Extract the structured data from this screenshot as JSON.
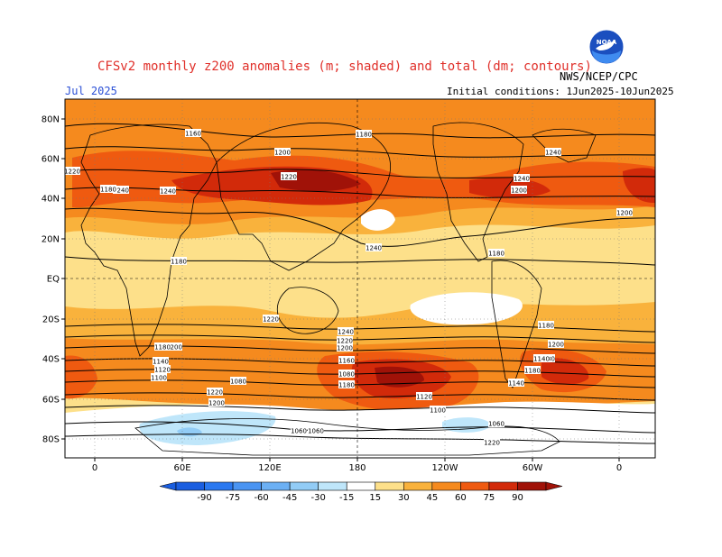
{
  "header": {
    "title": "CFSv2 monthly z200 anomalies (m; shaded) and total (dm; contours)",
    "month": "Jul 2025",
    "agency": "NWS/NCEP/CPC",
    "initial_conditions": "Initial conditions: 1Jun2025-10Jun2025",
    "logo_text": "NOAA"
  },
  "map": {
    "lat_labels": [
      "80N",
      "60N",
      "40N",
      "20N",
      "EQ",
      "20S",
      "40S",
      "60S",
      "80S"
    ],
    "lon_labels": [
      "0",
      "60E",
      "120E",
      "180",
      "120W",
      "60W",
      "0"
    ],
    "contour_labels": [
      "1160",
      "1180",
      "1200",
      "1220",
      "1240",
      "1240",
      "1240",
      "1240",
      "1200",
      "1220",
      "1240",
      "1180",
      "1180",
      "1200",
      "1220",
      "1240",
      "1220",
      "1200",
      "1180",
      "1200",
      "1180",
      "1160",
      "1140",
      "1120",
      "1100",
      "1080",
      "1220",
      "1200",
      "1180",
      "1180",
      "1140",
      "1120",
      "1100",
      "1080",
      "1060",
      "1220",
      "1200",
      "1180",
      "1180",
      "1140",
      "1080",
      "1060",
      "1060"
    ]
  },
  "colorbar": {
    "labels": [
      "-90",
      "-75",
      "-60",
      "-45",
      "-30",
      "-15",
      "15",
      "30",
      "45",
      "60",
      "75",
      "90"
    ],
    "colors": [
      "#1a5ee0",
      "#2a78f0",
      "#4a94f2",
      "#6cb0f4",
      "#92ccf6",
      "#bfe6fa",
      "#ffffff",
      "#fde08a",
      "#f9b23c",
      "#f58a1e",
      "#ef5a10",
      "#d22a0a",
      "#a01208"
    ]
  },
  "colors": {
    "title": "#e0302a",
    "month": "#2a4fd6",
    "ocean_bg": "#f7c85a"
  }
}
